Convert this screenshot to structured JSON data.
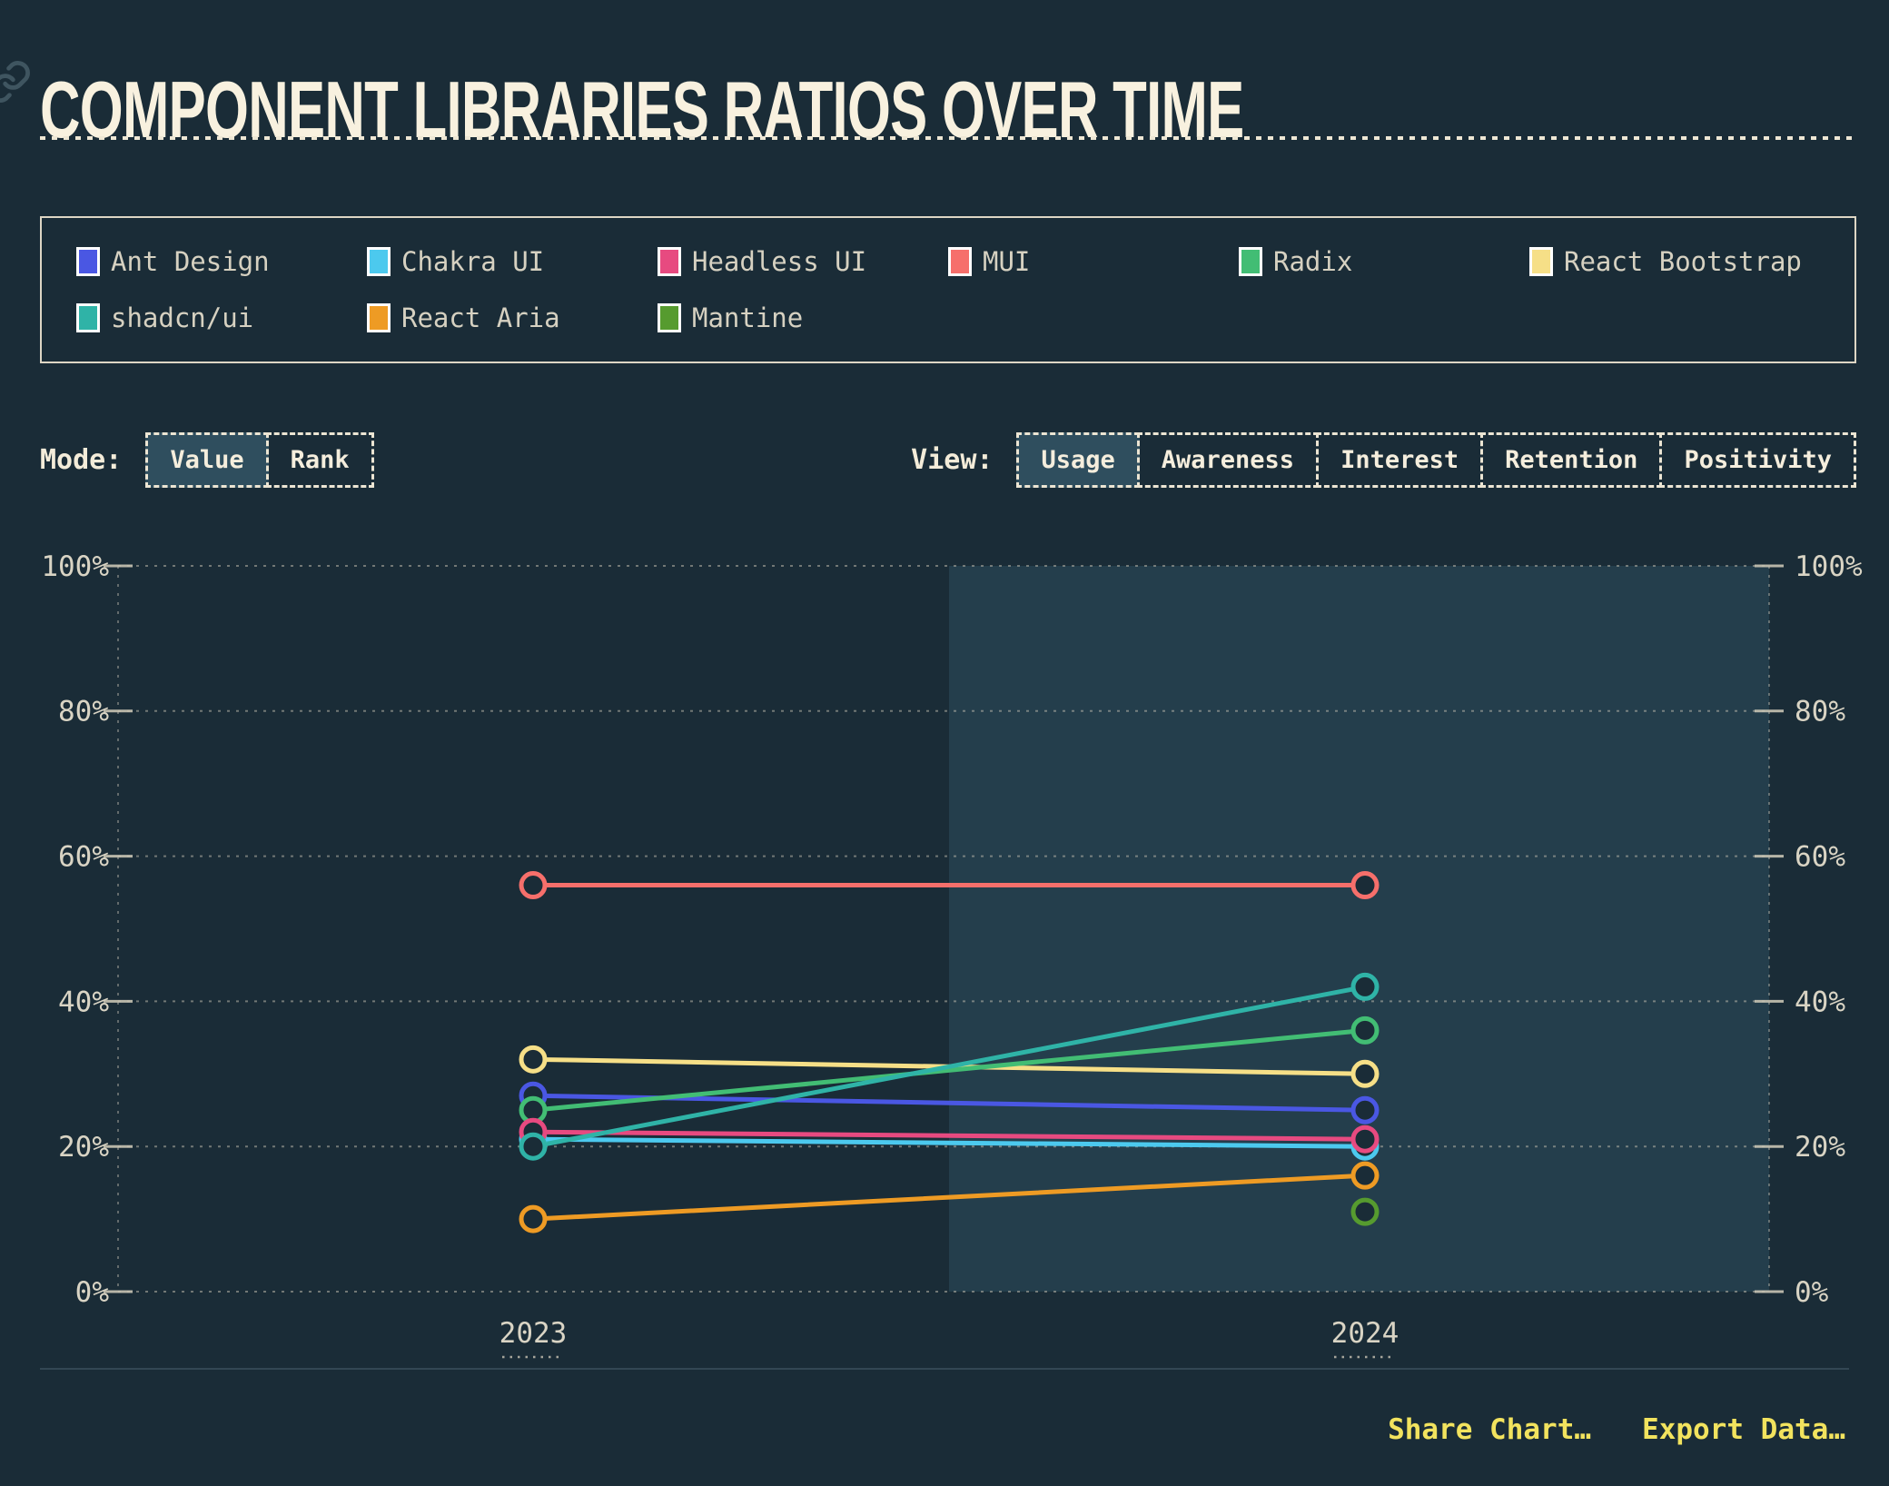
{
  "header": {
    "title": "COMPONENT LIBRARIES RATIOS OVER TIME"
  },
  "controls": {
    "mode_label": "Mode:",
    "mode_options": [
      {
        "label": "Value",
        "active": true
      },
      {
        "label": "Rank",
        "active": false
      }
    ],
    "view_label": "View:",
    "view_options": [
      {
        "label": "Usage",
        "active": true
      },
      {
        "label": "Awareness",
        "active": false
      },
      {
        "label": "Interest",
        "active": false
      },
      {
        "label": "Retention",
        "active": false
      },
      {
        "label": "Positivity",
        "active": false
      }
    ]
  },
  "footer": {
    "links": [
      "Share Chart…",
      "Export Data…"
    ]
  },
  "chart_data": {
    "type": "line",
    "title": "Component Libraries Ratios Over Time",
    "mode": "Value",
    "view": "Usage",
    "x_categories": [
      "2023",
      "2024"
    ],
    "y_axis": {
      "min": 0,
      "max": 100,
      "ticks": [
        0,
        20,
        40,
        60,
        80,
        100
      ],
      "suffix": "%"
    },
    "grid": true,
    "legend_position": "top",
    "highlight": "2024 half of plot shaded",
    "series": [
      {
        "name": "MUI",
        "color": "#f66f6b",
        "legend_index": 3,
        "values": [
          56,
          56
        ]
      },
      {
        "name": "React Bootstrap",
        "color": "#f6df87",
        "legend_index": 5,
        "values": [
          32,
          30
        ]
      },
      {
        "name": "Ant Design",
        "color": "#4a57e3",
        "legend_index": 0,
        "values": [
          27,
          25
        ]
      },
      {
        "name": "Chakra UI",
        "color": "#4cc9ee",
        "legend_index": 1,
        "values": [
          21,
          20
        ]
      },
      {
        "name": "Radix",
        "color": "#42bd74",
        "legend_index": 4,
        "values": [
          25,
          36
        ]
      },
      {
        "name": "Headless UI",
        "color": "#e74a80",
        "legend_index": 2,
        "values": [
          22,
          21
        ]
      },
      {
        "name": "shadcn/ui",
        "color": "#2fb3a7",
        "legend_index": 6,
        "values": [
          20,
          42
        ]
      },
      {
        "name": "React Aria",
        "color": "#ee9b24",
        "legend_index": 7,
        "values": [
          10,
          16
        ]
      },
      {
        "name": "Mantine",
        "color": "#569b2f",
        "legend_index": 8,
        "values": [
          null,
          11
        ]
      }
    ]
  }
}
